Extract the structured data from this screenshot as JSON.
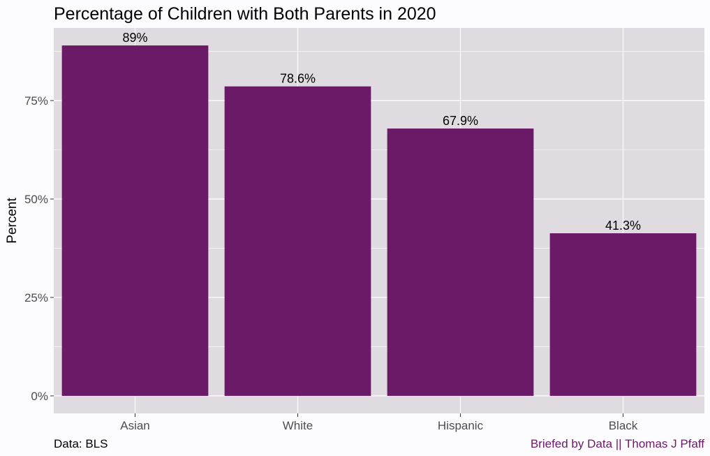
{
  "colors": {
    "bar": "#6b1a68",
    "panel": "#e0dbe0",
    "background": "#fcfbfd",
    "grid": "#ffffff",
    "caption_accent": "#6b1a68"
  },
  "captions": {
    "left": "Data: BLS",
    "right": "Briefed by Data || Thomas J Pfaff"
  },
  "chart_data": {
    "type": "bar",
    "title": "Percentage of Children with Both Parents in 2020",
    "xlabel": "",
    "ylabel": "Percent",
    "categories": [
      "Asian",
      "White",
      "Hispanic",
      "Black"
    ],
    "values": [
      89,
      78.6,
      67.9,
      41.3
    ],
    "data_labels": [
      "89%",
      "78.6%",
      "67.9%",
      "41.3%"
    ],
    "ylim": [
      -4.45,
      93.45
    ],
    "yticks": [
      0,
      25,
      50,
      75
    ],
    "ytick_labels": [
      "0%",
      "25%",
      "50%",
      "75%"
    ],
    "grid": true,
    "legend": "none"
  }
}
